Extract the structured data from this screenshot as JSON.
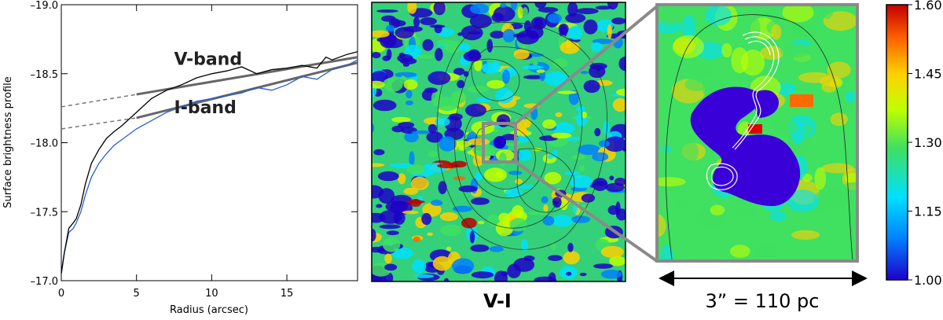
{
  "chart_data": [
    {
      "type": "line",
      "xlabel": "Radius (arcsec)",
      "ylabel": "Surface brightness profile",
      "xlim": [
        0,
        19.7
      ],
      "ylim": [
        -19.0,
        -17.0
      ],
      "y_inverted": true,
      "x_ticks": [
        0,
        5,
        10,
        15
      ],
      "y_ticks": [
        -17.0,
        -17.5,
        -18.0,
        -18.5,
        -19.0
      ],
      "y_tick_labels": [
        "–17.0",
        "–17.5",
        "–18.0",
        "–18.5",
        "–19.0"
      ],
      "series": [
        {
          "color": "#2a5fd0",
          "x": [
            0,
            0.2,
            0.5,
            0.8,
            1.0,
            1.3,
            1.6,
            2.0,
            2.5,
            3.0,
            3.5,
            4.0,
            5.0,
            6.0,
            7.0,
            8.0,
            9.0,
            10.0,
            11.0,
            12.0,
            13.0,
            14.0,
            15.0,
            16.0,
            17.0,
            18.0,
            19.0,
            19.7
          ],
          "y": [
            -17.05,
            -17.2,
            -17.35,
            -17.38,
            -17.42,
            -17.5,
            -17.62,
            -17.75,
            -17.85,
            -17.92,
            -17.98,
            -18.02,
            -18.1,
            -18.16,
            -18.22,
            -18.26,
            -18.3,
            -18.32,
            -18.34,
            -18.36,
            -18.4,
            -18.38,
            -18.42,
            -18.48,
            -18.46,
            -18.53,
            -18.56,
            -18.6
          ]
        },
        {
          "color": "#000000",
          "x": [
            0,
            0.2,
            0.5,
            0.8,
            1.0,
            1.3,
            1.6,
            2.0,
            2.5,
            3.0,
            3.5,
            4.0,
            5.0,
            6.0,
            7.0,
            8.0,
            9.0,
            10.0,
            11.0,
            12.0,
            13.0,
            14.0,
            15.0,
            16.0,
            17.0,
            17.6,
            18.0,
            19.0,
            19.7
          ],
          "y": [
            -17.05,
            -17.2,
            -17.38,
            -17.42,
            -17.45,
            -17.55,
            -17.7,
            -17.85,
            -17.95,
            -18.03,
            -18.08,
            -18.12,
            -18.22,
            -18.32,
            -18.38,
            -18.42,
            -18.47,
            -18.5,
            -18.52,
            -18.55,
            -18.5,
            -18.53,
            -18.54,
            -18.56,
            -18.54,
            -18.62,
            -18.6,
            -18.64,
            -18.66
          ]
        }
      ],
      "fits": [
        {
          "band": "I-band",
          "solid_x": [
            5.0,
            19.7
          ],
          "solid_y": [
            -18.18,
            -18.58
          ],
          "dashed_x": [
            0,
            5.0
          ],
          "dashed_y": [
            -18.1,
            -18.18
          ]
        },
        {
          "band": "V-band",
          "solid_x": [
            5.0,
            19.7
          ],
          "solid_y": [
            -18.35,
            -18.62
          ],
          "dashed_x": [
            0,
            5.0
          ],
          "dashed_y": [
            -18.26,
            -18.35
          ]
        }
      ],
      "annotations": [
        "I-band",
        "V-band"
      ]
    },
    {
      "type": "heatmap",
      "title": "V-I",
      "colorbar": {
        "min": 1.0,
        "max": 1.6,
        "ticks": [
          "1.60",
          "1.45",
          "1.30",
          "1.15",
          "1.00"
        ],
        "colormap": [
          "#1e00c8",
          "#0080ff",
          "#00e0ff",
          "#40e060",
          "#c0ff00",
          "#ffd000",
          "#ff6000",
          "#c00000"
        ]
      }
    }
  ],
  "inset": {
    "scale_label": "3” = 110 pc"
  }
}
